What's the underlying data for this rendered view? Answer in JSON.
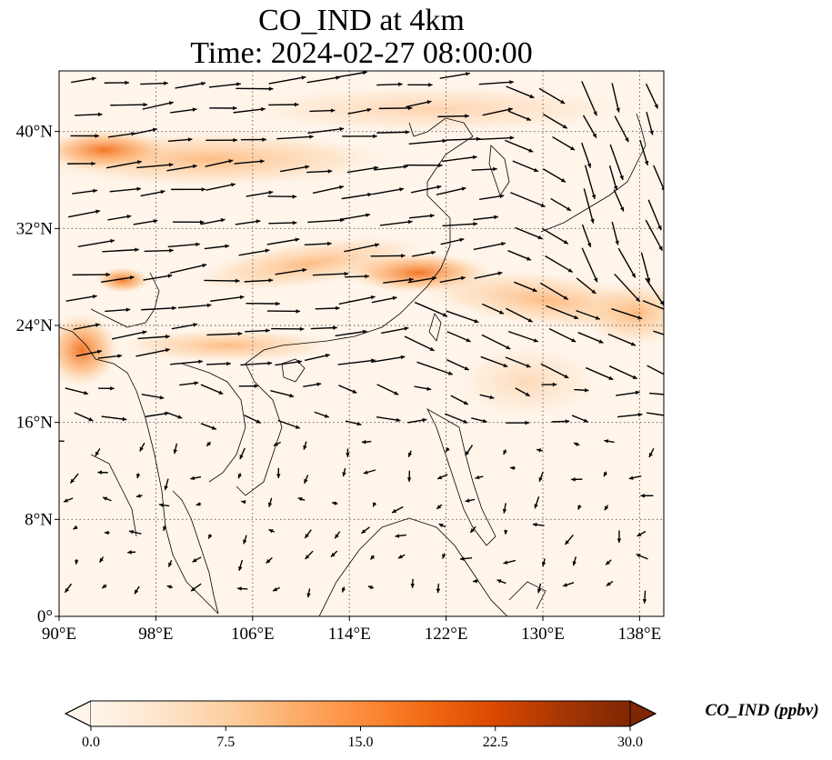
{
  "title": {
    "line1": "CO_IND at 4km",
    "line2": "Time: 2024-02-27 08:00:00"
  },
  "map": {
    "lon_range": [
      90,
      140
    ],
    "lat_range": [
      0,
      45
    ],
    "lon_ticks": [
      {
        "value": 90,
        "label": "90°E"
      },
      {
        "value": 98,
        "label": "98°E"
      },
      {
        "value": 106,
        "label": "106°E"
      },
      {
        "value": 114,
        "label": "114°E"
      },
      {
        "value": 122,
        "label": "122°E"
      },
      {
        "value": 130,
        "label": "130°E"
      },
      {
        "value": 138,
        "label": "138°E"
      }
    ],
    "lat_ticks": [
      {
        "value": 0,
        "label": "0°"
      },
      {
        "value": 8,
        "label": "8°N"
      },
      {
        "value": 16,
        "label": "16°N"
      },
      {
        "value": 24,
        "label": "24°N"
      },
      {
        "value": 32,
        "label": "32°N"
      },
      {
        "value": 40,
        "label": "40°N"
      }
    ],
    "gridlines": "dotted",
    "background_color": "#fff5eb",
    "colormap": [
      "#fff5eb",
      "#fee6ce",
      "#fdd0a2",
      "#fdae6b",
      "#fd8d3c",
      "#f16913",
      "#d94801",
      "#a63603",
      "#7f2704"
    ]
  },
  "colorbar": {
    "label": "CO_IND (ppbv)",
    "min": 0,
    "max": 30,
    "ticks": [
      "0.0",
      "7.5",
      "15.0",
      "22.5",
      "30.0"
    ],
    "extend": "both"
  }
}
